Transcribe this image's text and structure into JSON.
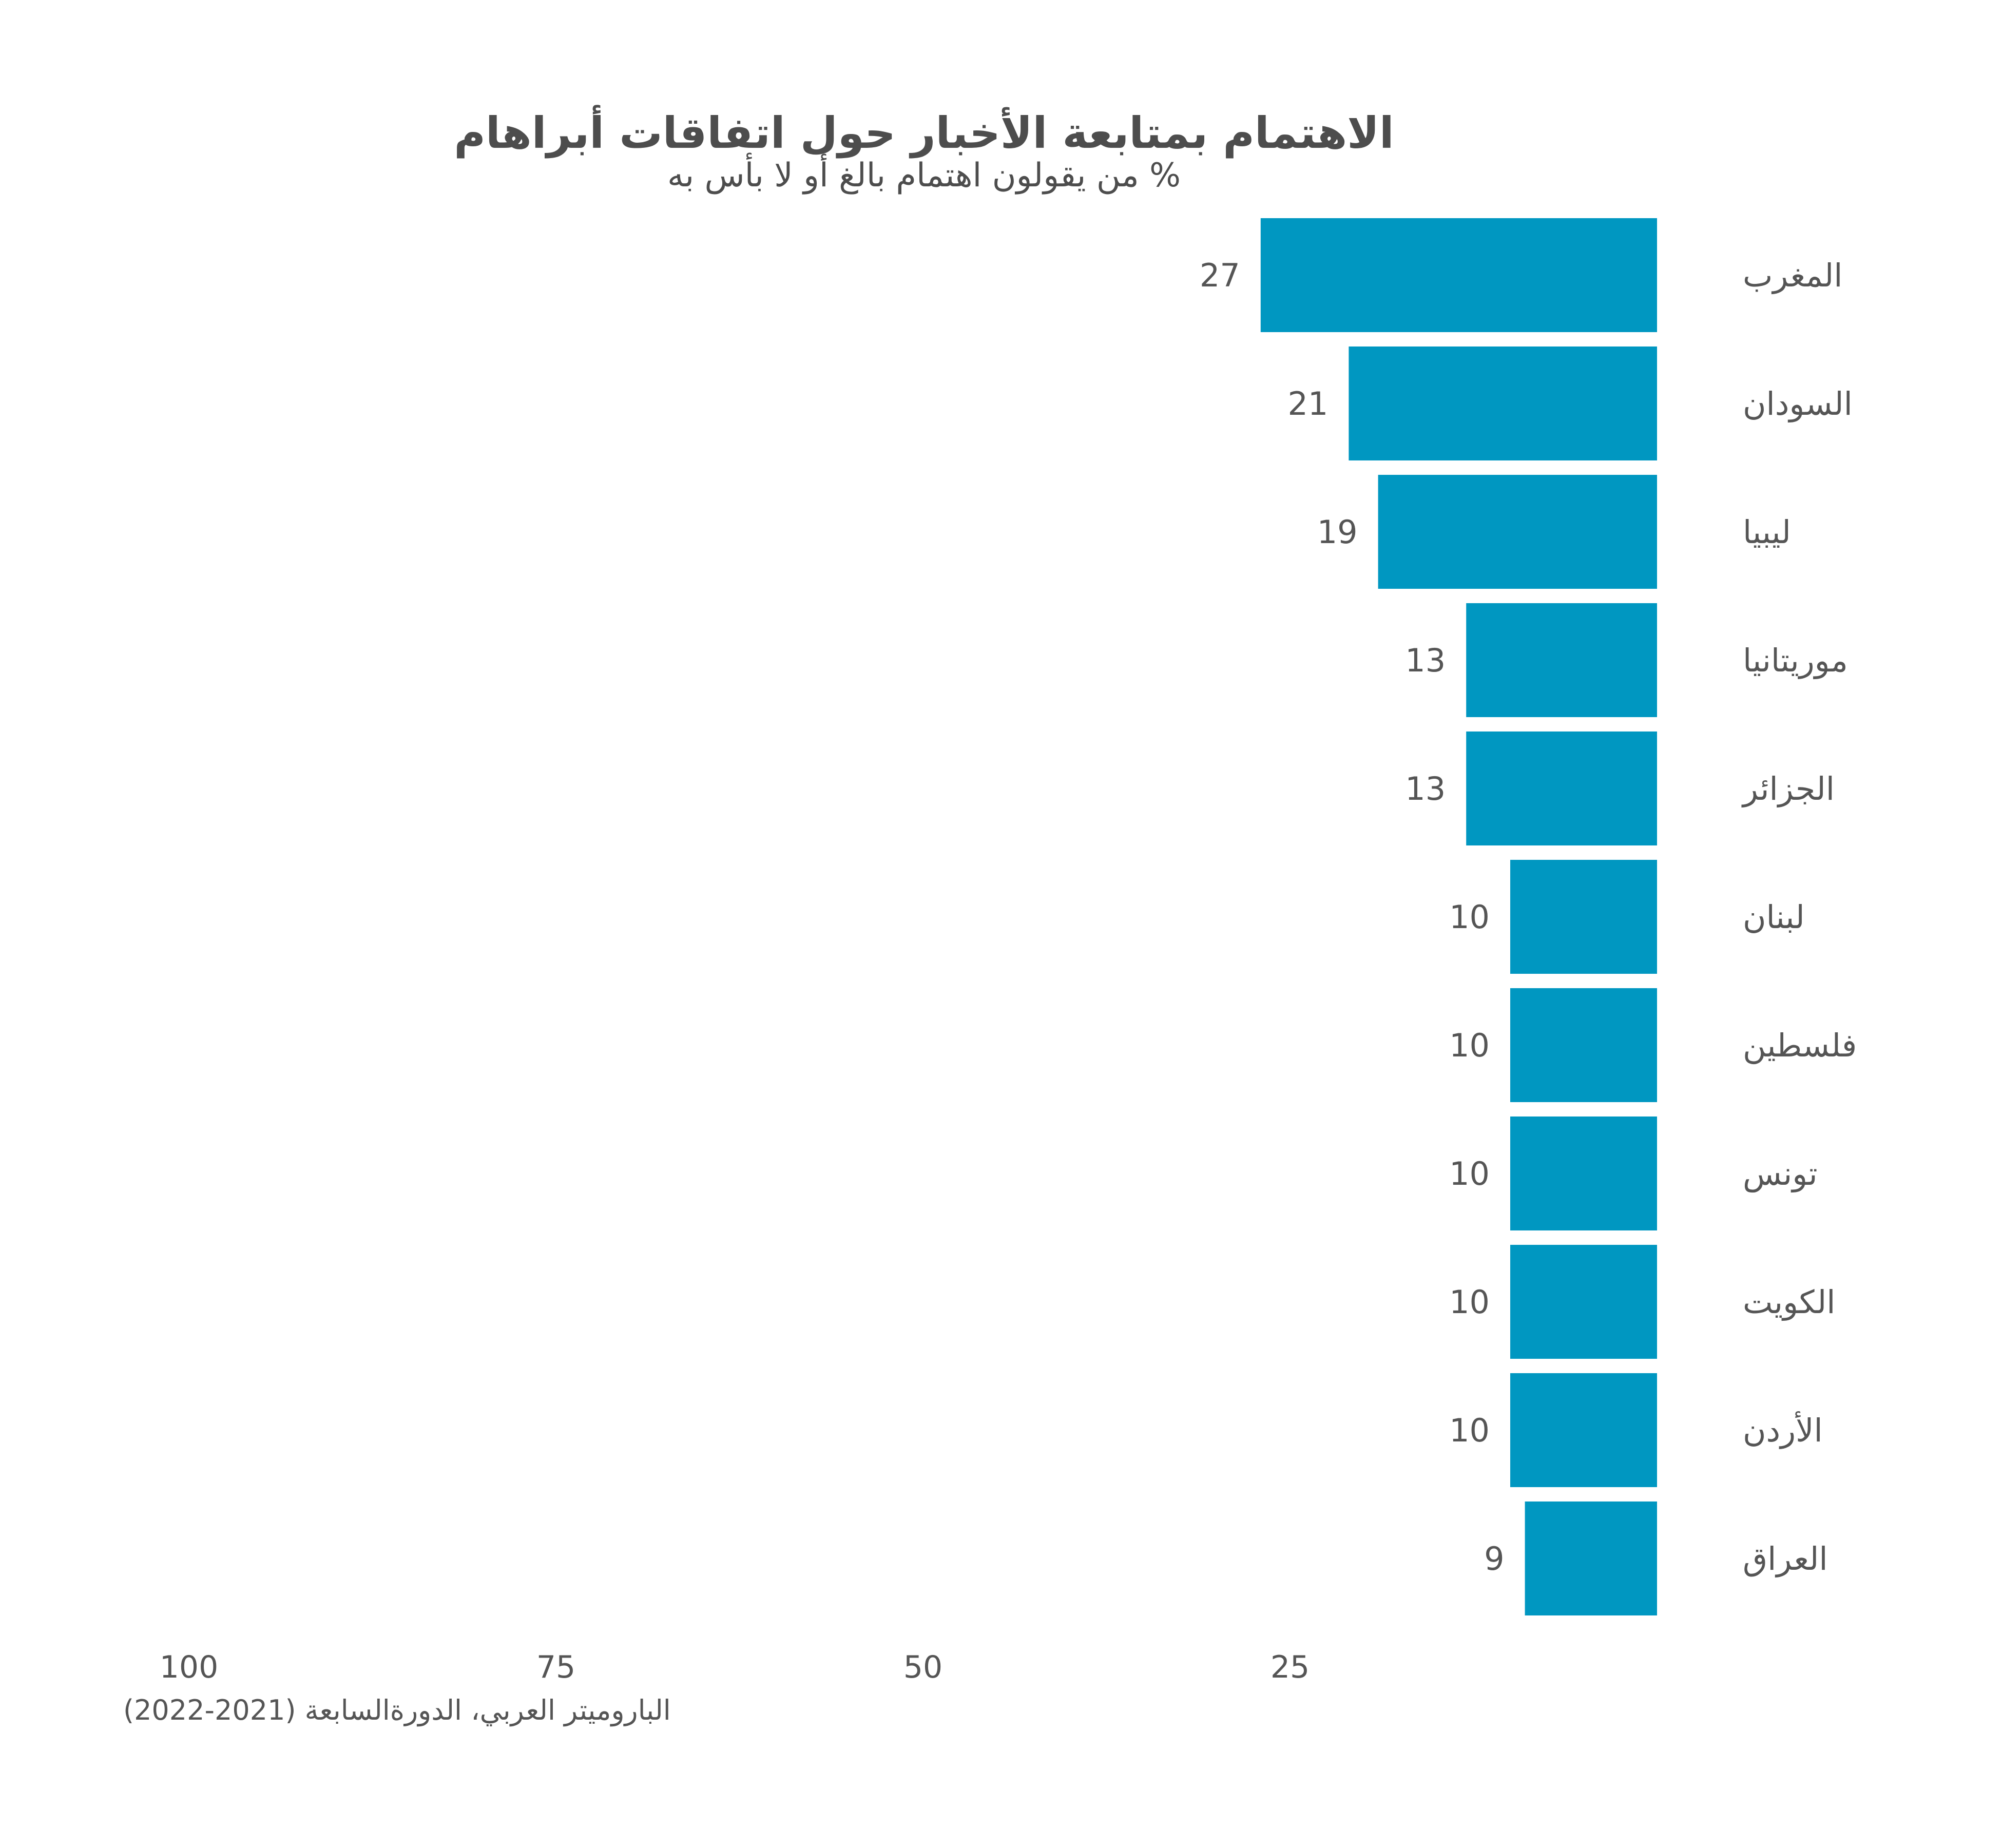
{
  "chart_data": {
    "type": "bar",
    "orientation": "horizontal",
    "title": "الاهتمام بمتابعة الأخبار حول اتفاقات أبراهام",
    "subtitle": "% من يقولون اهتمام بالغ أو لا بأس به",
    "categories": [
      "المغرب",
      "السودان",
      "ليبيا",
      "موريتانيا",
      "الجزائر",
      "لبنان",
      "فلسطين",
      "تونس",
      "الكويت",
      "الأردن",
      "العراق"
    ],
    "values": [
      27,
      21,
      19,
      13,
      13,
      10,
      10,
      10,
      10,
      10,
      9
    ],
    "xlim": [
      0,
      100
    ],
    "x_axis_reversed": true,
    "x_ticks": [
      100,
      75,
      50,
      25
    ],
    "grid": false,
    "bar_color": "#0097c1",
    "source": "الباروميتر العربي، الدورةالسابعة (2021-2022)"
  }
}
